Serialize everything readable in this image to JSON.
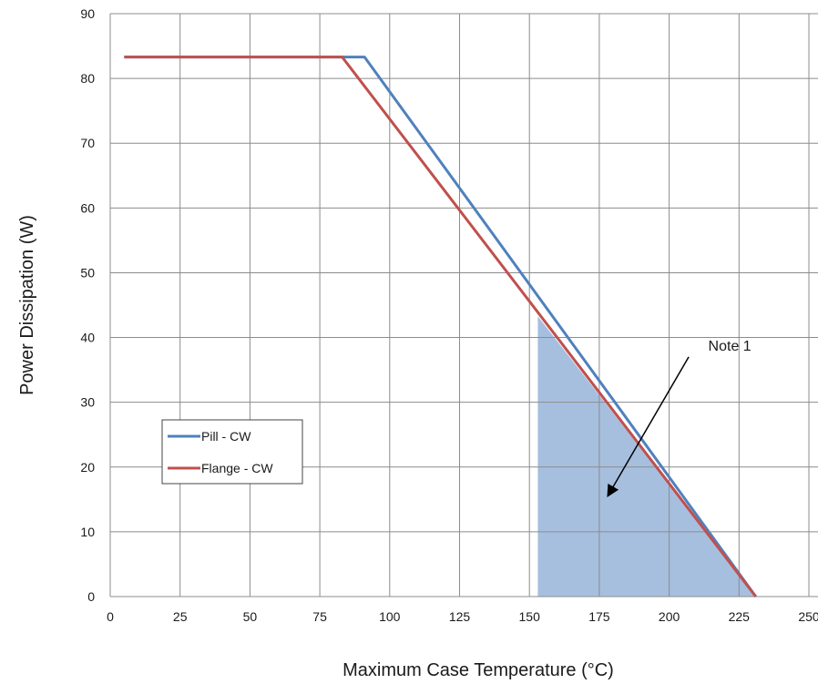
{
  "chart_data": {
    "type": "line",
    "xlabel": "Maximum Case Temperature (°C)",
    "ylabel": "Power Dissipation (W)",
    "xlim": [
      0,
      250
    ],
    "ylim": [
      0,
      90
    ],
    "xticks": [
      "0",
      "25",
      "50",
      "75",
      "100",
      "125",
      "150",
      "175",
      "200",
      "225",
      "250"
    ],
    "yticks": [
      "0",
      "10",
      "20",
      "30",
      "40",
      "50",
      "60",
      "70",
      "80",
      "90"
    ],
    "grid": true,
    "legend_position": "left-middle",
    "series": [
      {
        "name": "Pill - CW",
        "color": "#4f81bd",
        "points": [
          [
            5,
            83.3
          ],
          [
            91,
            83.3
          ],
          [
            231,
            0
          ]
        ]
      },
      {
        "name": "Flange - CW",
        "color": "#c0504d",
        "points": [
          [
            5,
            83.3
          ],
          [
            83,
            83.3
          ],
          [
            231,
            0
          ]
        ]
      }
    ],
    "shaded_region": {
      "color": "#a7bfdf",
      "points": [
        [
          153,
          0
        ],
        [
          153,
          43.3
        ],
        [
          231,
          0
        ]
      ]
    },
    "annotations": [
      {
        "text": "Note 1",
        "text_at": [
          214,
          38
        ],
        "arrow_from": [
          207,
          37
        ],
        "arrow_to": [
          178,
          15.5
        ]
      }
    ]
  }
}
